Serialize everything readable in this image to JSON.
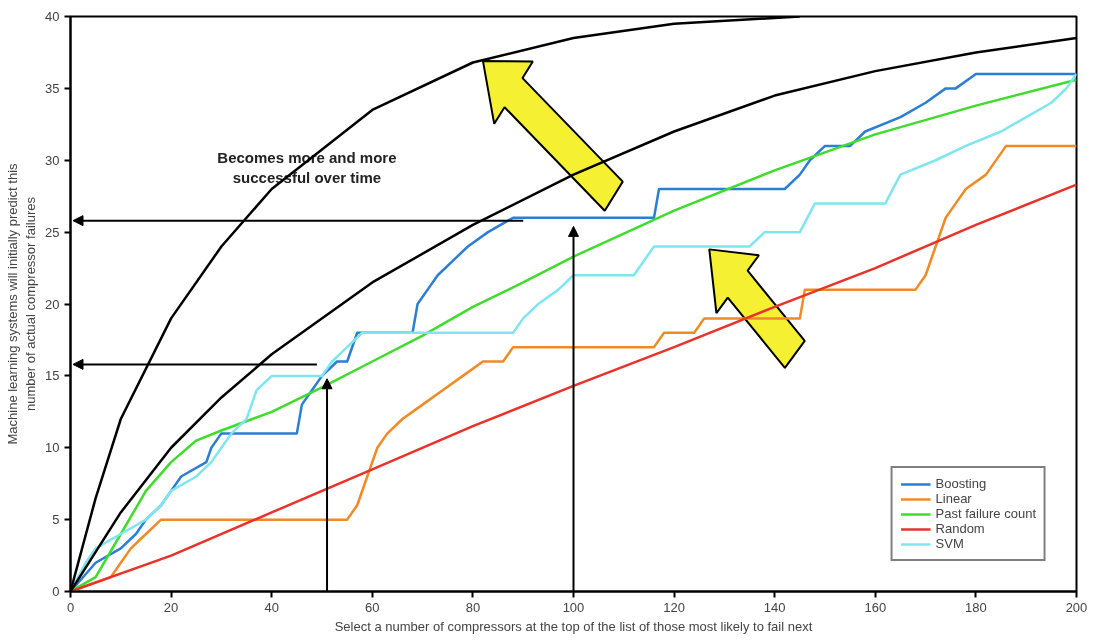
{
  "chart_data": {
    "type": "line",
    "xlabel": "Select a number of compressors at the top of the list of those most likely to fail next",
    "ylabel": "Machine learning systems will initially predict this\nnumber of actual compressor failures",
    "xlim": [
      0,
      200
    ],
    "ylim": [
      0,
      40
    ],
    "xticks": [
      0,
      20,
      40,
      60,
      80,
      100,
      120,
      140,
      160,
      180,
      200
    ],
    "yticks": [
      0,
      5,
      10,
      15,
      20,
      25,
      30,
      35,
      40
    ],
    "grid": false,
    "legend": "bottom right",
    "marker": "none",
    "line_style": "solid",
    "annotations": [
      "Becomes more and more\nsuccessful over time"
    ],
    "series": [
      {
        "name": "Boosting",
        "color": "#2a7fd4",
        "x": [
          0,
          5,
          10,
          13,
          15,
          18,
          20,
          22,
          27,
          28,
          30,
          45,
          46,
          48,
          50,
          53,
          55,
          57,
          68,
          69,
          71,
          73,
          76,
          79,
          83,
          88,
          92,
          116,
          117,
          142,
          145,
          147,
          150,
          155,
          158,
          165,
          170,
          174,
          176,
          180,
          200
        ],
        "values": [
          0,
          2,
          3,
          4,
          5,
          6,
          7,
          8,
          9,
          10,
          11,
          11,
          13,
          14,
          15,
          16,
          16,
          18,
          18,
          20,
          21,
          22,
          23,
          24,
          25,
          26,
          26,
          26,
          28,
          28,
          29,
          30,
          31,
          31,
          32,
          33,
          34,
          35,
          35,
          36,
          36
        ]
      },
      {
        "name": "Linear",
        "color": "#f08a24",
        "x": [
          0,
          8,
          10,
          12,
          15,
          18,
          50,
          55,
          57,
          59,
          61,
          63,
          66,
          70,
          74,
          78,
          82,
          86,
          88,
          116,
          118,
          124,
          126,
          145,
          146,
          168,
          170,
          172,
          174,
          176,
          178,
          182,
          186,
          200
        ],
        "values": [
          0,
          1,
          2,
          3,
          4,
          5,
          5,
          5,
          6,
          8,
          10,
          11,
          12,
          13,
          14,
          15,
          16,
          16,
          17,
          17,
          18,
          18,
          19,
          19,
          21,
          21,
          22,
          24,
          26,
          27,
          28,
          29,
          31,
          31
        ]
      },
      {
        "name": "Past failure count",
        "color": "#3fdc2c",
        "x": [
          0,
          5,
          10,
          15,
          20,
          25,
          30,
          40,
          50,
          60,
          70,
          80,
          90,
          100,
          120,
          140,
          160,
          180,
          200
        ],
        "values": [
          0,
          1,
          4,
          7,
          9,
          10.5,
          11.2,
          12.5,
          14.2,
          16,
          17.8,
          19.8,
          21.5,
          23.3,
          26.5,
          29.3,
          31.8,
          33.8,
          35.6
        ]
      },
      {
        "name": "Random",
        "color": "#e8322a",
        "x": [
          0,
          20,
          40,
          60,
          80,
          100,
          120,
          140,
          160,
          180,
          200
        ],
        "values": [
          0,
          2.5,
          5.5,
          8.5,
          11.5,
          14.3,
          17,
          19.8,
          22.5,
          25.5,
          28.3
        ]
      },
      {
        "name": "SVM",
        "color": "#7fe6f0",
        "x": [
          0,
          3,
          5,
          10,
          15,
          18,
          20,
          25,
          28,
          30,
          32,
          35,
          37,
          40,
          50,
          52,
          55,
          58,
          88,
          90,
          93,
          97,
          100,
          112,
          116,
          135,
          138,
          145,
          148,
          162,
          165,
          172,
          178,
          185,
          190,
          195,
          198,
          200
        ],
        "values": [
          0,
          2,
          3,
          4,
          5,
          6,
          7,
          8,
          9,
          10,
          11,
          12,
          14,
          15,
          15,
          16,
          17,
          18,
          18,
          19,
          20,
          21,
          22,
          22,
          24,
          24,
          25,
          25,
          27,
          27,
          29,
          30,
          31,
          32,
          33,
          34,
          35,
          36
        ]
      },
      {
        "color": "#000000",
        "x": [
          0,
          5,
          10,
          20,
          30,
          40,
          60,
          80,
          100,
          120,
          145
        ],
        "values": [
          0,
          6.5,
          12,
          19,
          24,
          28,
          33.5,
          36.8,
          38.5,
          39.5,
          40
        ]
      },
      {
        "color": "#000000",
        "x": [
          0,
          10,
          20,
          30,
          40,
          60,
          80,
          100,
          120,
          140,
          160,
          180,
          200
        ],
        "values": [
          0,
          5.5,
          10,
          13.5,
          16.5,
          21.5,
          25.5,
          29,
          32,
          34.5,
          36.2,
          37.5,
          38.5
        ]
      }
    ]
  }
}
